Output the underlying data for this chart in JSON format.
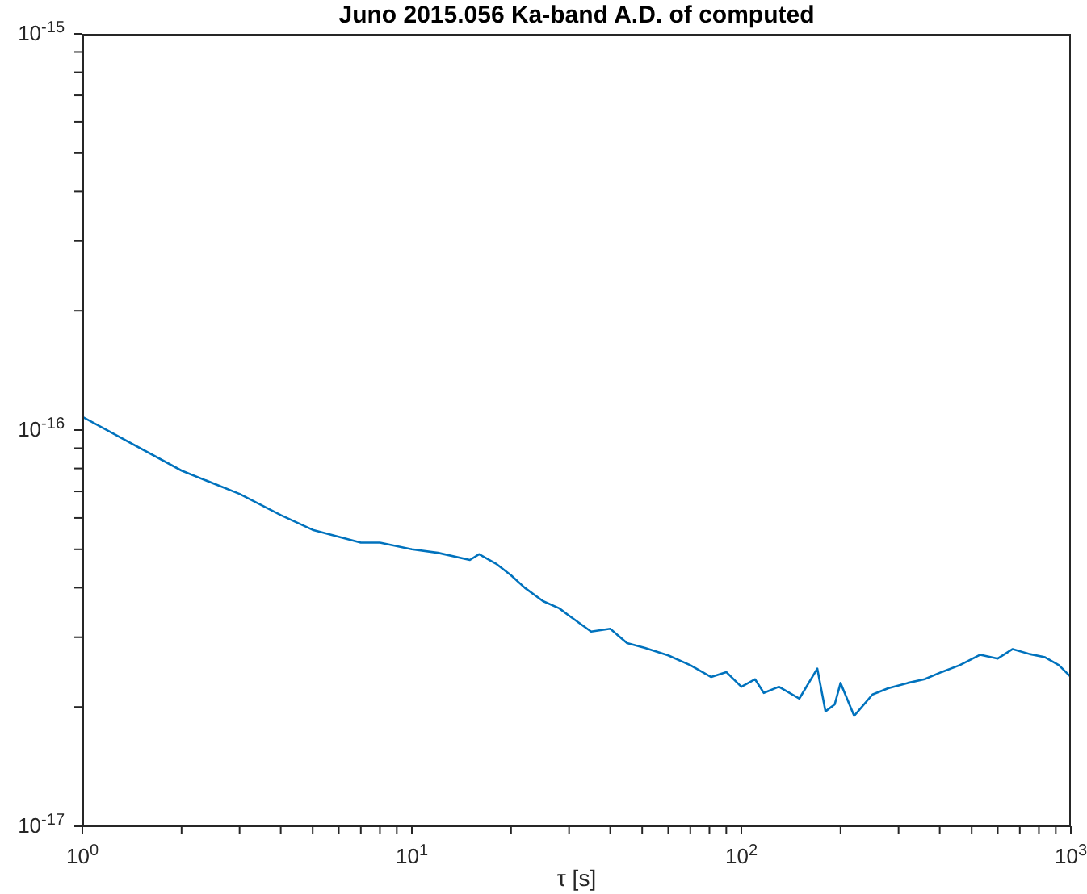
{
  "chart_data": {
    "type": "line",
    "title": "Juno 2015.056 Ka-band A.D. of computed",
    "xlabel": "τ [s]",
    "log": "xy",
    "marker": "none",
    "line_style": "solid",
    "xlim": [
      1,
      1000
    ],
    "ylim": [
      1e-17,
      1e-15
    ],
    "xticks": [
      {
        "value": 1,
        "label": "10$^{0}$"
      },
      {
        "value": 2,
        "label": null
      },
      {
        "value": 3,
        "label": null
      },
      {
        "value": 4,
        "label": null
      },
      {
        "value": 5,
        "label": null
      },
      {
        "value": 6,
        "label": null
      },
      {
        "value": 7,
        "label": null
      },
      {
        "value": 8,
        "label": null
      },
      {
        "value": 9,
        "label": null
      },
      {
        "value": 10,
        "label": "10$^{1}$"
      },
      {
        "value": 20,
        "label": null
      },
      {
        "value": 30,
        "label": null
      },
      {
        "value": 40,
        "label": null
      },
      {
        "value": 50,
        "label": null
      },
      {
        "value": 60,
        "label": null
      },
      {
        "value": 70,
        "label": null
      },
      {
        "value": 80,
        "label": null
      },
      {
        "value": 90,
        "label": null
      },
      {
        "value": 100,
        "label": "10$^{2}$"
      },
      {
        "value": 200,
        "label": null
      },
      {
        "value": 300,
        "label": null
      },
      {
        "value": 400,
        "label": null
      },
      {
        "value": 500,
        "label": null
      },
      {
        "value": 600,
        "label": null
      },
      {
        "value": 700,
        "label": null
      },
      {
        "value": 800,
        "label": null
      },
      {
        "value": 900,
        "label": null
      },
      {
        "value": 1000,
        "label": "10$^{3}$"
      }
    ],
    "yticks": [
      {
        "value": 1e-17,
        "label": "10$^{-17}$"
      },
      {
        "value": 2e-17,
        "label": null
      },
      {
        "value": 3e-17,
        "label": null
      },
      {
        "value": 4e-17,
        "label": null
      },
      {
        "value": 5e-17,
        "label": null
      },
      {
        "value": 6e-17,
        "label": null
      },
      {
        "value": 7e-17,
        "label": null
      },
      {
        "value": 8e-17,
        "label": null
      },
      {
        "value": 9e-17,
        "label": null
      },
      {
        "value": 1e-16,
        "label": "10$^{-16}$"
      },
      {
        "value": 2e-16,
        "label": null
      },
      {
        "value": 3e-16,
        "label": null
      },
      {
        "value": 4e-16,
        "label": null
      },
      {
        "value": 5e-16,
        "label": null
      },
      {
        "value": 6e-16,
        "label": null
      },
      {
        "value": 7e-16,
        "label": null
      },
      {
        "value": 8e-16,
        "label": null
      },
      {
        "value": 9e-16,
        "label": null
      },
      {
        "value": 1e-15,
        "label": "10$^{-15}$"
      }
    ],
    "series": [
      {
        "color": "#0072bd",
        "x": [
          1,
          2,
          3,
          4,
          5,
          7,
          8,
          10,
          12,
          15,
          16,
          18,
          20,
          22,
          25,
          28,
          30,
          35,
          40,
          45,
          51,
          60,
          70,
          81,
          90,
          100,
          110,
          117,
          130,
          150,
          170,
          180,
          192,
          200,
          220,
          250,
          279,
          320,
          360,
          405,
          460,
          531,
          600,
          666,
          750,
          835,
          920,
          1000
        ],
        "values": [
          1.08e-16,
          7.9e-17,
          6.9e-17,
          6.1e-17,
          5.6e-17,
          5.2e-17,
          5.2e-17,
          5e-17,
          4.9e-17,
          4.7e-17,
          4.86e-17,
          4.6e-17,
          4.3e-17,
          4e-17,
          3.7e-17,
          3.55e-17,
          3.4e-17,
          3.1e-17,
          3.15e-17,
          2.9e-17,
          2.82e-17,
          2.7e-17,
          2.55e-17,
          2.38e-17,
          2.45e-17,
          2.25e-17,
          2.35e-17,
          2.17e-17,
          2.25e-17,
          2.1e-17,
          2.5e-17,
          1.95e-17,
          2.03e-17,
          2.3e-17,
          1.9e-17,
          2.15e-17,
          2.23e-17,
          2.3e-17,
          2.35e-17,
          2.45e-17,
          2.55e-17,
          2.71e-17,
          2.65e-17,
          2.8e-17,
          2.72e-17,
          2.67e-17,
          2.55e-17,
          2.38e-17
        ]
      }
    ]
  }
}
